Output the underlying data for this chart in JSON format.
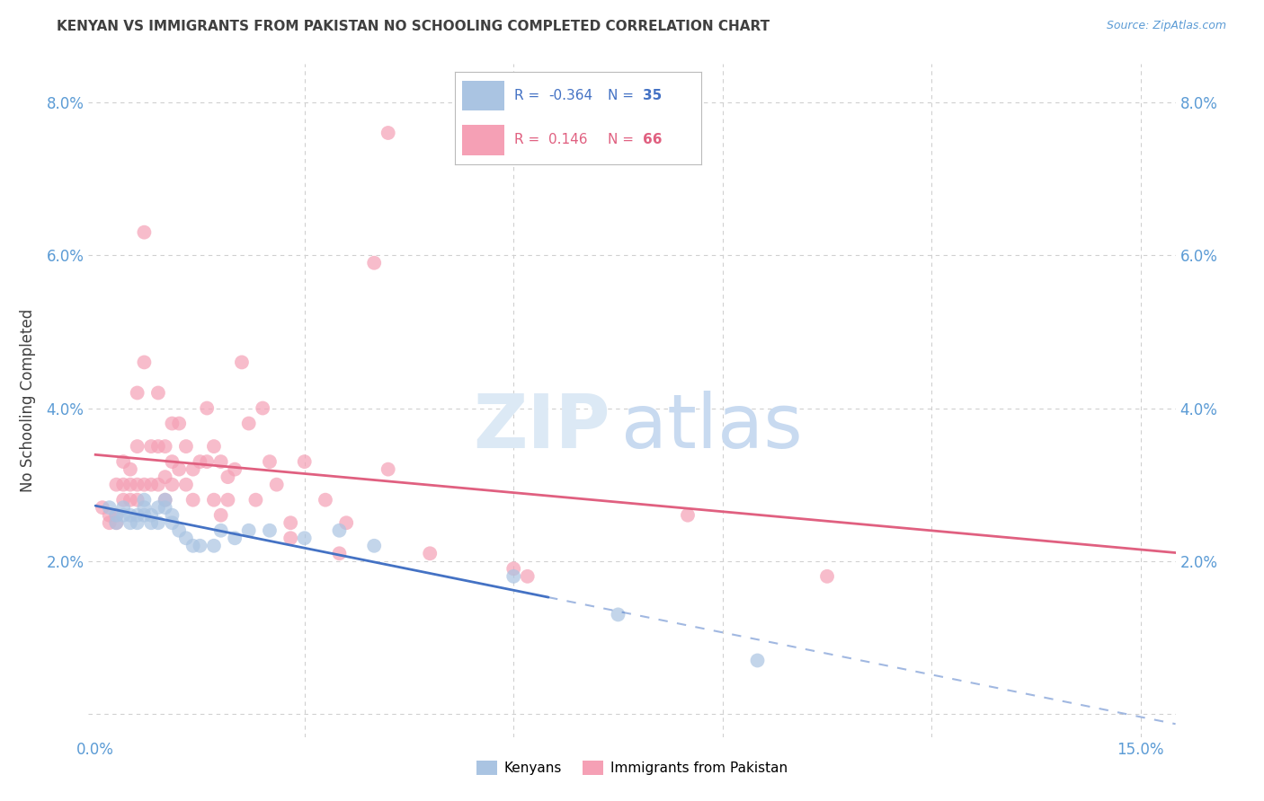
{
  "title": "KENYAN VS IMMIGRANTS FROM PAKISTAN NO SCHOOLING COMPLETED CORRELATION CHART",
  "source": "Source: ZipAtlas.com",
  "xlim": [
    -0.001,
    0.155
  ],
  "ylim": [
    -0.003,
    0.085
  ],
  "x_tick_positions": [
    0.0,
    0.03,
    0.06,
    0.09,
    0.12,
    0.15
  ],
  "x_tick_labels": [
    "0.0%",
    "",
    "",
    "",
    "",
    "15.0%"
  ],
  "y_tick_positions": [
    0.0,
    0.02,
    0.04,
    0.06,
    0.08
  ],
  "y_tick_labels": [
    "",
    "2.0%",
    "4.0%",
    "6.0%",
    "8.0%"
  ],
  "kenyan_R": -0.364,
  "kenyan_N": 35,
  "pakistan_R": 0.146,
  "pakistan_N": 66,
  "kenyan_color": "#aac4e2",
  "pakistan_color": "#f5a0b5",
  "kenyan_line_color": "#4472c4",
  "pakistan_line_color": "#e06080",
  "axis_label_color": "#5b9bd5",
  "title_color": "#404040",
  "source_color": "#5b9bd5",
  "grid_color": "#d0d0d0",
  "watermark_zip_color": "#dce9f5",
  "watermark_atlas_color": "#c8daf0",
  "kenyan_scatter": [
    [
      0.002,
      0.027
    ],
    [
      0.003,
      0.026
    ],
    [
      0.003,
      0.025
    ],
    [
      0.004,
      0.027
    ],
    [
      0.004,
      0.026
    ],
    [
      0.005,
      0.026
    ],
    [
      0.005,
      0.025
    ],
    [
      0.006,
      0.026
    ],
    [
      0.006,
      0.025
    ],
    [
      0.007,
      0.028
    ],
    [
      0.007,
      0.027
    ],
    [
      0.007,
      0.026
    ],
    [
      0.008,
      0.026
    ],
    [
      0.008,
      0.025
    ],
    [
      0.009,
      0.027
    ],
    [
      0.009,
      0.025
    ],
    [
      0.01,
      0.028
    ],
    [
      0.01,
      0.027
    ],
    [
      0.011,
      0.026
    ],
    [
      0.011,
      0.025
    ],
    [
      0.012,
      0.024
    ],
    [
      0.013,
      0.023
    ],
    [
      0.014,
      0.022
    ],
    [
      0.015,
      0.022
    ],
    [
      0.017,
      0.022
    ],
    [
      0.018,
      0.024
    ],
    [
      0.02,
      0.023
    ],
    [
      0.022,
      0.024
    ],
    [
      0.025,
      0.024
    ],
    [
      0.03,
      0.023
    ],
    [
      0.035,
      0.024
    ],
    [
      0.04,
      0.022
    ],
    [
      0.06,
      0.018
    ],
    [
      0.075,
      0.013
    ],
    [
      0.095,
      0.007
    ]
  ],
  "pakistan_scatter": [
    [
      0.001,
      0.027
    ],
    [
      0.002,
      0.026
    ],
    [
      0.002,
      0.025
    ],
    [
      0.003,
      0.03
    ],
    [
      0.003,
      0.026
    ],
    [
      0.003,
      0.025
    ],
    [
      0.004,
      0.033
    ],
    [
      0.004,
      0.03
    ],
    [
      0.004,
      0.028
    ],
    [
      0.005,
      0.032
    ],
    [
      0.005,
      0.03
    ],
    [
      0.005,
      0.028
    ],
    [
      0.006,
      0.042
    ],
    [
      0.006,
      0.035
    ],
    [
      0.006,
      0.03
    ],
    [
      0.006,
      0.028
    ],
    [
      0.007,
      0.063
    ],
    [
      0.007,
      0.046
    ],
    [
      0.007,
      0.03
    ],
    [
      0.008,
      0.035
    ],
    [
      0.008,
      0.03
    ],
    [
      0.009,
      0.042
    ],
    [
      0.009,
      0.035
    ],
    [
      0.009,
      0.03
    ],
    [
      0.01,
      0.035
    ],
    [
      0.01,
      0.031
    ],
    [
      0.01,
      0.028
    ],
    [
      0.011,
      0.038
    ],
    [
      0.011,
      0.033
    ],
    [
      0.011,
      0.03
    ],
    [
      0.012,
      0.038
    ],
    [
      0.012,
      0.032
    ],
    [
      0.013,
      0.035
    ],
    [
      0.013,
      0.03
    ],
    [
      0.014,
      0.032
    ],
    [
      0.014,
      0.028
    ],
    [
      0.015,
      0.033
    ],
    [
      0.016,
      0.04
    ],
    [
      0.016,
      0.033
    ],
    [
      0.017,
      0.035
    ],
    [
      0.017,
      0.028
    ],
    [
      0.018,
      0.033
    ],
    [
      0.018,
      0.026
    ],
    [
      0.019,
      0.031
    ],
    [
      0.019,
      0.028
    ],
    [
      0.02,
      0.032
    ],
    [
      0.021,
      0.046
    ],
    [
      0.022,
      0.038
    ],
    [
      0.023,
      0.028
    ],
    [
      0.024,
      0.04
    ],
    [
      0.025,
      0.033
    ],
    [
      0.026,
      0.03
    ],
    [
      0.028,
      0.025
    ],
    [
      0.028,
      0.023
    ],
    [
      0.03,
      0.033
    ],
    [
      0.033,
      0.028
    ],
    [
      0.035,
      0.021
    ],
    [
      0.036,
      0.025
    ],
    [
      0.04,
      0.059
    ],
    [
      0.042,
      0.032
    ],
    [
      0.042,
      0.076
    ],
    [
      0.048,
      0.021
    ],
    [
      0.06,
      0.019
    ],
    [
      0.062,
      0.018
    ],
    [
      0.085,
      0.026
    ],
    [
      0.105,
      0.018
    ]
  ]
}
